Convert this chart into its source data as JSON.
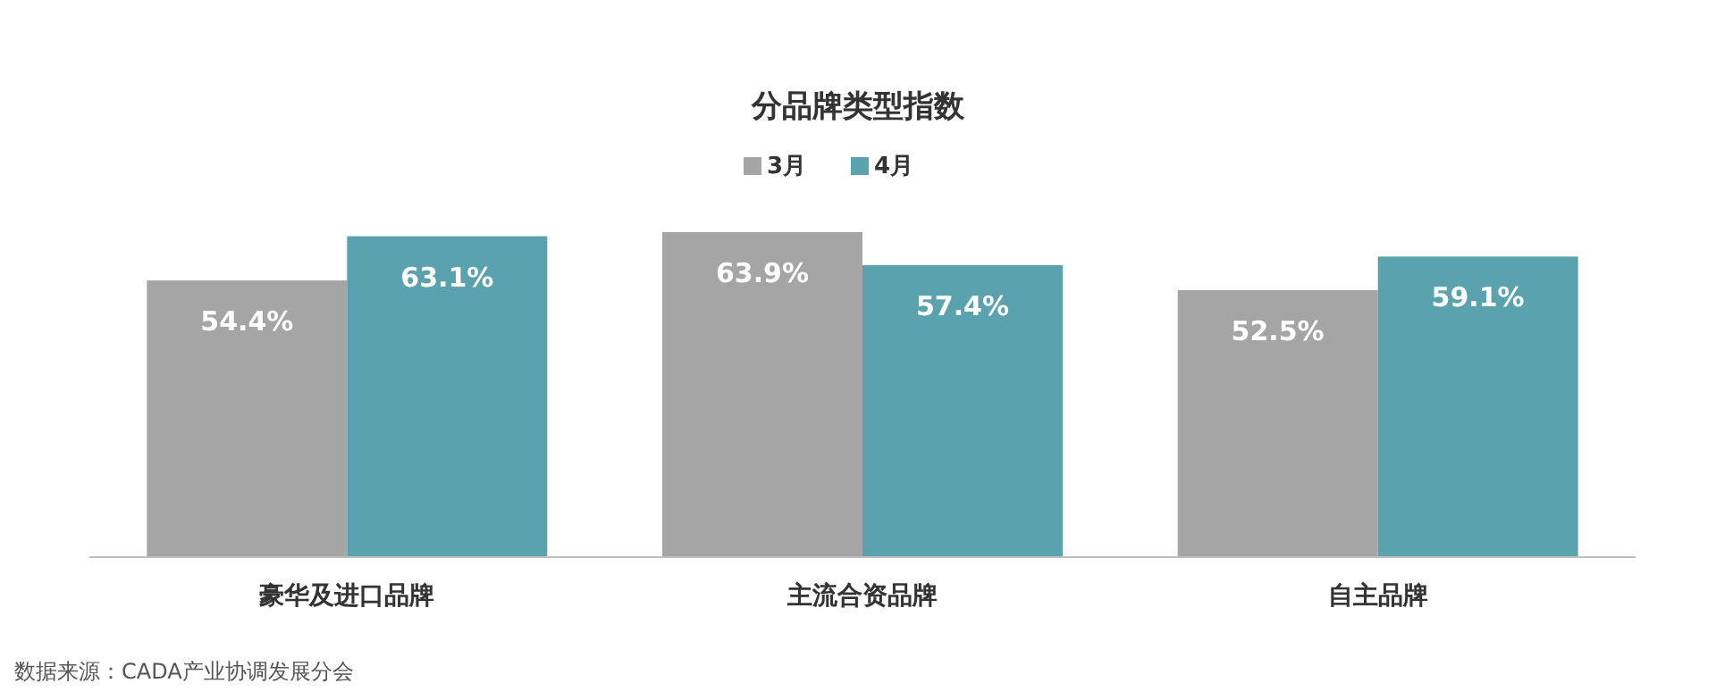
{
  "chart_data": {
    "type": "bar",
    "title": "分品牌类型指数",
    "categories": [
      "豪华及进口品牌",
      "主流合资品牌",
      "自主品牌"
    ],
    "series": [
      {
        "name": "3月",
        "color": "#a5a5a5",
        "values": [
          54.4,
          63.9,
          52.5
        ],
        "value_labels": [
          "54.4%",
          "63.9%",
          "52.5%"
        ]
      },
      {
        "name": "4月",
        "color": "#5aa2ad",
        "values": [
          63.1,
          57.4,
          59.1
        ],
        "value_labels": [
          "63.1%",
          "57.4%",
          "59.1%"
        ]
      }
    ],
    "legend": "top",
    "annotations": [
      "数据来源：CADA产业协调发展分会"
    ]
  }
}
